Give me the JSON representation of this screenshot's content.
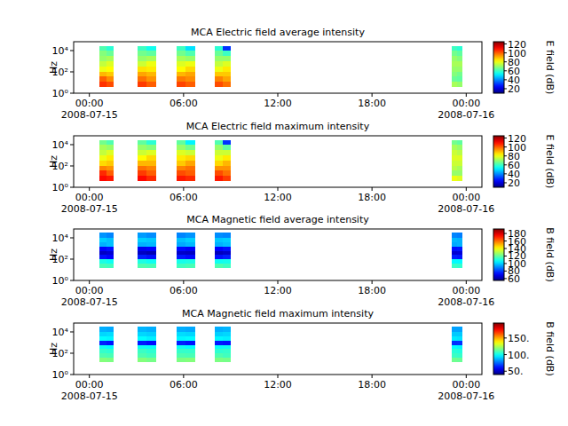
{
  "chart_data": [
    {
      "type": "heatmap",
      "title": "MCA  Electric field average intensity",
      "ylabel": "Hz",
      "log": "y",
      "xlim": [
        "2008-07-14 23:00",
        "2008-07-16 01:00"
      ],
      "xticks": [
        {
          "value": "2008-07-15 00:00",
          "label": "00:00\n2008-07-15"
        },
        {
          "value": "2008-07-15 06:00",
          "label": "06:00"
        },
        {
          "value": "2008-07-15 12:00",
          "label": "12:00"
        },
        {
          "value": "2008-07-15 18:00",
          "label": "18:00"
        },
        {
          "value": "2008-07-16 00:00",
          "label": "00:00\n2008-07-16"
        }
      ],
      "ylim": [
        1,
        68000
      ],
      "yticks": [
        {
          "value": 1,
          "label": "10⁰"
        },
        {
          "value": 100,
          "label": "10²"
        },
        {
          "value": 10000,
          "label": "10⁴"
        }
      ],
      "time_bins": [
        [
          "2008-07-15 00:37",
          "2008-07-15 01:05"
        ],
        [
          "2008-07-15 01:05",
          "2008-07-15 01:32"
        ],
        [
          "2008-07-15 03:03",
          "2008-07-15 03:38"
        ],
        [
          "2008-07-15 03:38",
          "2008-07-15 04:14"
        ],
        [
          "2008-07-15 05:33",
          "2008-07-15 06:08"
        ],
        [
          "2008-07-15 06:08",
          "2008-07-15 06:44"
        ],
        [
          "2008-07-15 07:59",
          "2008-07-15 08:30"
        ],
        [
          "2008-07-15 08:30",
          "2008-07-15 09:00"
        ],
        [
          "2008-07-15 23:06",
          "2008-07-15 23:26"
        ],
        [
          "2008-07-15 23:26",
          "2008-07-15 23:46"
        ]
      ],
      "freq_bins": [
        4,
        12,
        35,
        100,
        300,
        1000,
        3000,
        10000,
        26000
      ],
      "cells": [
        [
          105,
          100,
          90,
          80,
          75,
          70,
          68,
          62
        ],
        [
          102,
          95,
          88,
          82,
          78,
          72,
          65,
          58
        ],
        [
          104,
          98,
          92,
          85,
          76,
          70,
          66,
          60
        ],
        [
          100,
          94,
          90,
          84,
          80,
          72,
          64,
          55
        ],
        [
          103,
          97,
          90,
          82,
          78,
          72,
          66,
          60
        ],
        [
          100,
          95,
          92,
          86,
          80,
          70,
          62,
          50
        ],
        [
          102,
          96,
          88,
          80,
          75,
          70,
          65,
          58
        ],
        [
          98,
          92,
          88,
          84,
          78,
          70,
          60,
          30
        ],
        [
          72,
          65,
          68,
          70,
          72,
          70,
          66,
          60
        ],
        [
          70,
          64,
          66,
          70,
          72,
          68,
          64,
          58
        ]
      ],
      "colorbar": {
        "label": "E field (dB)",
        "range": [
          10,
          125
        ],
        "ticks": [
          20,
          40,
          60,
          80,
          100,
          120
        ]
      }
    },
    {
      "type": "heatmap",
      "title": "MCA  Electric field maximum intensity",
      "ylabel": "Hz",
      "log": "y",
      "xlim": [
        "2008-07-14 23:00",
        "2008-07-16 01:00"
      ],
      "xticks": [
        {
          "value": "2008-07-15 00:00",
          "label": "00:00\n2008-07-15"
        },
        {
          "value": "2008-07-15 06:00",
          "label": "06:00"
        },
        {
          "value": "2008-07-15 12:00",
          "label": "12:00"
        },
        {
          "value": "2008-07-15 18:00",
          "label": "18:00"
        },
        {
          "value": "2008-07-16 00:00",
          "label": "00:00\n2008-07-16"
        }
      ],
      "ylim": [
        1,
        68000
      ],
      "yticks": [
        {
          "value": 1,
          "label": "10⁰"
        },
        {
          "value": 100,
          "label": "10²"
        },
        {
          "value": 10000,
          "label": "10⁴"
        }
      ],
      "time_bins": [
        [
          "2008-07-15 00:37",
          "2008-07-15 01:05"
        ],
        [
          "2008-07-15 01:05",
          "2008-07-15 01:32"
        ],
        [
          "2008-07-15 03:03",
          "2008-07-15 03:38"
        ],
        [
          "2008-07-15 03:38",
          "2008-07-15 04:14"
        ],
        [
          "2008-07-15 05:33",
          "2008-07-15 06:08"
        ],
        [
          "2008-07-15 06:08",
          "2008-07-15 06:44"
        ],
        [
          "2008-07-15 07:59",
          "2008-07-15 08:30"
        ],
        [
          "2008-07-15 08:30",
          "2008-07-15 09:00"
        ],
        [
          "2008-07-15 23:06",
          "2008-07-15 23:26"
        ],
        [
          "2008-07-15 23:26",
          "2008-07-15 23:46"
        ]
      ],
      "freq_bins": [
        4,
        12,
        35,
        100,
        300,
        1000,
        3000,
        10000,
        26000
      ],
      "cells": [
        [
          110,
          106,
          96,
          86,
          80,
          75,
          72,
          66
        ],
        [
          108,
          100,
          94,
          88,
          84,
          78,
          70,
          62
        ],
        [
          110,
          104,
          98,
          90,
          82,
          76,
          70,
          64
        ],
        [
          106,
          100,
          96,
          90,
          86,
          78,
          68,
          58
        ],
        [
          108,
          102,
          96,
          88,
          84,
          78,
          70,
          64
        ],
        [
          106,
          100,
          98,
          92,
          86,
          76,
          66,
          52
        ],
        [
          108,
          102,
          94,
          86,
          80,
          76,
          70,
          62
        ],
        [
          104,
          98,
          94,
          90,
          84,
          76,
          64,
          30
        ],
        [
          80,
          70,
          74,
          76,
          78,
          76,
          72,
          66
        ],
        [
          78,
          70,
          72,
          76,
          78,
          74,
          70,
          64
        ]
      ],
      "colorbar": {
        "label": "E field (dB)",
        "range": [
          10,
          125
        ],
        "ticks": [
          20,
          40,
          60,
          80,
          100,
          120
        ]
      }
    },
    {
      "type": "heatmap",
      "title": "MCA  Magnetic field average intensity",
      "ylabel": "Hz",
      "log": "y",
      "xlim": [
        "2008-07-14 23:00",
        "2008-07-16 01:00"
      ],
      "xticks": [
        {
          "value": "2008-07-15 00:00",
          "label": "00:00\n2008-07-15"
        },
        {
          "value": "2008-07-15 06:00",
          "label": "06:00"
        },
        {
          "value": "2008-07-15 12:00",
          "label": "12:00"
        },
        {
          "value": "2008-07-15 18:00",
          "label": "18:00"
        },
        {
          "value": "2008-07-16 00:00",
          "label": "00:00\n2008-07-16"
        }
      ],
      "ylim": [
        1,
        68000
      ],
      "yticks": [
        {
          "value": 1,
          "label": "10⁰"
        },
        {
          "value": 100,
          "label": "10²"
        },
        {
          "value": 10000,
          "label": "10⁴"
        }
      ],
      "time_bins": [
        [
          "2008-07-15 00:37",
          "2008-07-15 01:05"
        ],
        [
          "2008-07-15 01:05",
          "2008-07-15 01:32"
        ],
        [
          "2008-07-15 03:03",
          "2008-07-15 03:38"
        ],
        [
          "2008-07-15 03:38",
          "2008-07-15 04:14"
        ],
        [
          "2008-07-15 05:33",
          "2008-07-15 06:08"
        ],
        [
          "2008-07-15 06:08",
          "2008-07-15 06:44"
        ],
        [
          "2008-07-15 07:59",
          "2008-07-15 08:30"
        ],
        [
          "2008-07-15 08:30",
          "2008-07-15 09:00"
        ],
        [
          "2008-07-15 23:06",
          "2008-07-15 23:26"
        ],
        [
          "2008-07-15 23:26",
          "2008-07-15 23:46"
        ]
      ],
      "freq_bins": [
        16,
        40,
        100,
        250,
        600,
        1500,
        4000,
        10000,
        30000
      ],
      "cells": [
        [
          116,
          110,
          74,
          64,
          72,
          96,
          100,
          92
        ],
        [
          115,
          108,
          72,
          66,
          74,
          98,
          98,
          90
        ],
        [
          117,
          110,
          76,
          64,
          70,
          96,
          100,
          93
        ],
        [
          116,
          108,
          74,
          62,
          72,
          97,
          99,
          91
        ],
        [
          115,
          109,
          75,
          65,
          73,
          95,
          98,
          90
        ],
        [
          116,
          110,
          73,
          64,
          71,
          97,
          100,
          92
        ],
        [
          117,
          108,
          74,
          63,
          72,
          96,
          99,
          91
        ],
        [
          115,
          109,
          76,
          65,
          74,
          98,
          100,
          90
        ],
        [
          114,
          106,
          76,
          66,
          74,
          95,
          97,
          90
        ],
        [
          113,
          106,
          75,
          67,
          75,
          96,
          96,
          89
        ]
      ],
      "colorbar": {
        "label": "B field (dB)",
        "range": [
          55,
          192
        ],
        "ticks": [
          60,
          80,
          100,
          120,
          140,
          160,
          180
        ]
      }
    },
    {
      "type": "heatmap",
      "title": "MCA  Magnetic field maximum intensity",
      "ylabel": "Hz",
      "log": "y",
      "xlim": [
        "2008-07-14 23:00",
        "2008-07-16 01:00"
      ],
      "xticks": [
        {
          "value": "2008-07-15 00:00",
          "label": "00:00\n2008-07-15"
        },
        {
          "value": "2008-07-15 06:00",
          "label": "06:00"
        },
        {
          "value": "2008-07-15 12:00",
          "label": "12:00"
        },
        {
          "value": "2008-07-15 18:00",
          "label": "18:00"
        },
        {
          "value": "2008-07-16 00:00",
          "label": "00:00\n2008-07-16"
        }
      ],
      "ylim": [
        1,
        68000
      ],
      "yticks": [
        {
          "value": 1,
          "label": "10⁰"
        },
        {
          "value": 100,
          "label": "10²"
        },
        {
          "value": 10000,
          "label": "10⁴"
        }
      ],
      "time_bins": [
        [
          "2008-07-15 00:37",
          "2008-07-15 01:05"
        ],
        [
          "2008-07-15 01:05",
          "2008-07-15 01:32"
        ],
        [
          "2008-07-15 03:03",
          "2008-07-15 03:38"
        ],
        [
          "2008-07-15 03:38",
          "2008-07-15 04:14"
        ],
        [
          "2008-07-15 05:33",
          "2008-07-15 06:08"
        ],
        [
          "2008-07-15 06:08",
          "2008-07-15 06:44"
        ],
        [
          "2008-07-15 07:59",
          "2008-07-15 08:30"
        ],
        [
          "2008-07-15 08:30",
          "2008-07-15 09:00"
        ],
        [
          "2008-07-15 23:06",
          "2008-07-15 23:26"
        ],
        [
          "2008-07-15 23:26",
          "2008-07-15 23:46"
        ]
      ],
      "freq_bins": [
        16,
        40,
        100,
        250,
        600,
        1500,
        4000,
        10000,
        30000
      ],
      "cells": [
        [
          118,
          110,
          106,
          100,
          64,
          98,
          92,
          86
        ],
        [
          117,
          109,
          105,
          98,
          62,
          97,
          93,
          85
        ],
        [
          118,
          110,
          107,
          100,
          63,
          98,
          92,
          87
        ],
        [
          116,
          108,
          105,
          99,
          61,
          96,
          91,
          86
        ],
        [
          117,
          110,
          106,
          100,
          64,
          97,
          93,
          86
        ],
        [
          118,
          109,
          106,
          98,
          62,
          98,
          92,
          85
        ],
        [
          117,
          110,
          105,
          99,
          63,
          97,
          91,
          86
        ],
        [
          116,
          108,
          106,
          100,
          62,
          96,
          92,
          87
        ],
        [
          115,
          107,
          104,
          98,
          66,
          95,
          90,
          84
        ],
        [
          114,
          106,
          103,
          97,
          67,
          94,
          90,
          84
        ]
      ],
      "colorbar": {
        "label": "B field (dB)",
        "range": [
          40,
          195
        ],
        "ticks": [
          {
            "value": 50,
            "label": "50."
          },
          {
            "value": 100,
            "label": "100."
          },
          {
            "value": 150,
            "label": "150."
          }
        ]
      }
    }
  ]
}
